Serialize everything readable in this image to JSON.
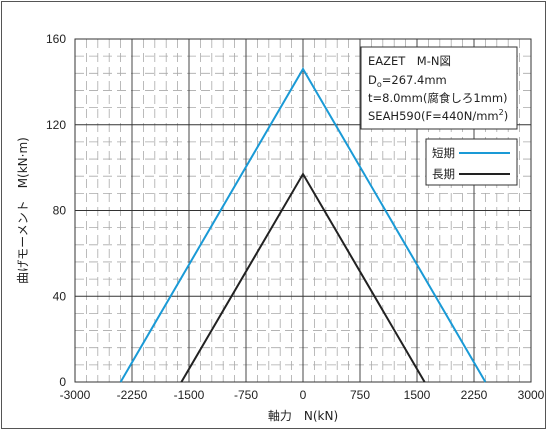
{
  "chart_data": {
    "type": "line",
    "title": "",
    "xlabel": "軸力　N(kN)",
    "ylabel": "曲げモーメント　M(kN·m)",
    "xlim": [
      -3000,
      3000
    ],
    "ylim": [
      0,
      160
    ],
    "x_ticks": [
      "-3000",
      "-2250",
      "-1500",
      "-750",
      "0",
      "750",
      "1500",
      "2250",
      "3000"
    ],
    "y_ticks": [
      "0",
      "40",
      "80",
      "120",
      "160"
    ],
    "grid": true,
    "legend_position": "top-right",
    "info_box": {
      "line1": "EAZET　M-N図",
      "line2_pre": "D",
      "line2_sub": "o",
      "line2_post": "=267.4mm",
      "line3": "t=8.0mm(腐食しろ1mm)",
      "line4_pre": "SEAH590(F=440N/mm",
      "line4_sup": "2",
      "line4_post": ")"
    },
    "series": [
      {
        "name": "短期",
        "color": "#1a9ad6",
        "x": [
          -2400,
          0,
          2400
        ],
        "y": [
          0,
          146,
          0
        ]
      },
      {
        "name": "長期",
        "color": "#222222",
        "x": [
          -1600,
          0,
          1600
        ],
        "y": [
          0,
          97,
          0
        ]
      }
    ]
  }
}
